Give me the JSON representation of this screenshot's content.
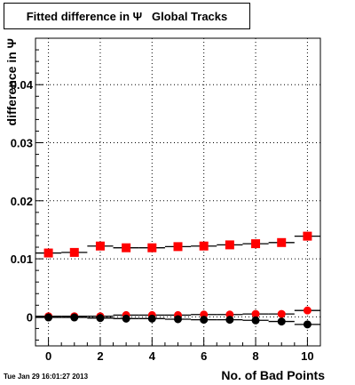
{
  "title": "Fitted difference in Ψ   Global Tracks",
  "timestamp": "Tue Jan 29 16:01:27 2013",
  "chart_data": {
    "type": "scatter",
    "xlabel": "No. of Bad Points",
    "ylabel": "difference in Ψ",
    "xlim": [
      -0.5,
      10.5
    ],
    "ylim": [
      -0.005,
      0.048
    ],
    "x_ticks": [
      0,
      2,
      4,
      6,
      8,
      10
    ],
    "y_ticks": [
      0,
      0.01,
      0.02,
      0.03,
      0.04
    ],
    "y_tick_labels": [
      "0",
      "0.01",
      "0.02",
      "0.03",
      "0.04"
    ],
    "grid": true,
    "series": [
      {
        "marker": "square",
        "color": "#ff0000",
        "x": [
          0,
          1,
          2,
          3,
          4,
          5,
          6,
          7,
          8,
          9,
          10
        ],
        "y": [
          0.011,
          0.0111,
          0.0122,
          0.0119,
          0.0119,
          0.0121,
          0.0122,
          0.0124,
          0.0126,
          0.0128,
          0.0139
        ]
      },
      {
        "marker": "circle",
        "color": "#ff0000",
        "x": [
          0,
          1,
          2,
          3,
          4,
          5,
          6,
          7,
          8,
          9,
          10
        ],
        "y": [
          0.0001,
          0.0001,
          0.0001,
          0.0003,
          0.0003,
          0.0003,
          0.0004,
          0.0004,
          0.0005,
          0.0005,
          0.0011
        ]
      },
      {
        "marker": "circle",
        "color": "#000000",
        "x": [
          0,
          1,
          2,
          3,
          4,
          5,
          6,
          7,
          8,
          9,
          10
        ],
        "y": [
          -0.0001,
          -0.0001,
          -0.0002,
          -0.0003,
          -0.0003,
          -0.0004,
          -0.0005,
          -0.0005,
          -0.0006,
          -0.0008,
          -0.0013
        ]
      }
    ]
  }
}
